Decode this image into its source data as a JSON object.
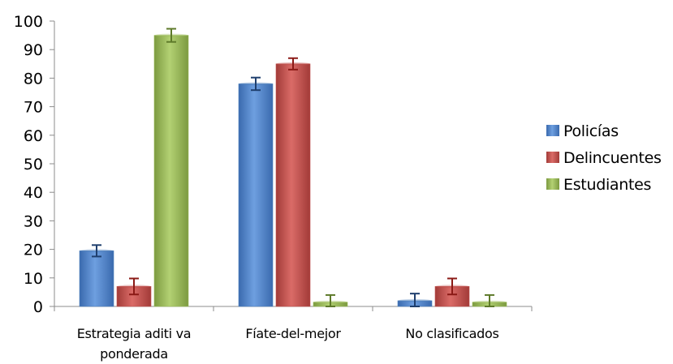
{
  "chart_data": {
    "type": "bar",
    "categories": [
      [
        "Estrategia aditi va",
        "ponderada"
      ],
      [
        "Fíate-del-mejor"
      ],
      [
        "No clasificados"
      ]
    ],
    "series": [
      {
        "name": "Policías",
        "values": [
          19.5,
          78,
          2
        ],
        "errors": [
          2,
          2.2,
          2.5
        ],
        "color": "#4F81BD"
      },
      {
        "name": "Delincuentes",
        "values": [
          7,
          85,
          7
        ],
        "errors": [
          2.8,
          2,
          2.8
        ],
        "color": "#C0504D"
      },
      {
        "name": "Estudiantes",
        "values": [
          95,
          1.5,
          1.5
        ],
        "errors": [
          2.3,
          2.5,
          2.5
        ],
        "color": "#9BBB59"
      }
    ],
    "title": "",
    "xlabel": "",
    "ylabel": "",
    "ylim": [
      0,
      100
    ],
    "yticks": [
      "0",
      "10",
      "20",
      "30",
      "40",
      "50",
      "60",
      "70",
      "80",
      "90",
      "100"
    ],
    "grid": false,
    "legend": "right"
  }
}
